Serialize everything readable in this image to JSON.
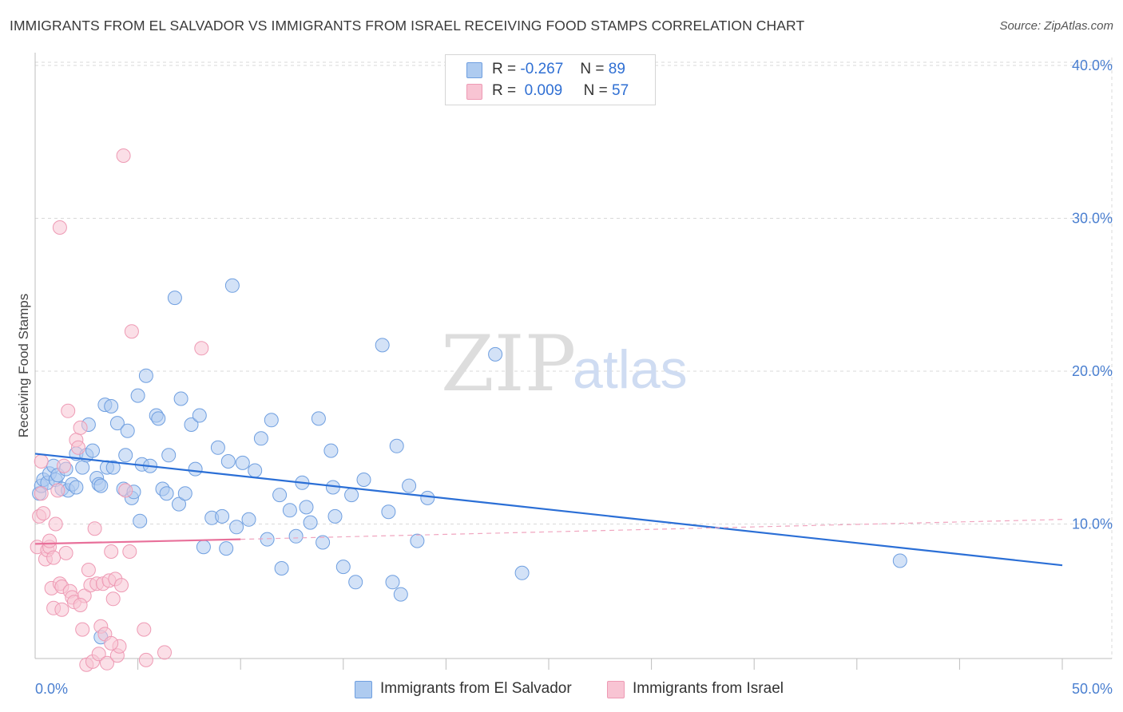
{
  "title": "IMMIGRANTS FROM EL SALVADOR VS IMMIGRANTS FROM ISRAEL RECEIVING FOOD STAMPS CORRELATION CHART",
  "source": "Source: ZipAtlas.com",
  "watermark": {
    "zip": "ZIP",
    "atlas": "atlas"
  },
  "legend": {
    "r_label": "R =",
    "n_label": "N =",
    "entries": [
      {
        "r": "-0.267",
        "n": "89",
        "color": "#aecbf0",
        "border": "#6f9fe0"
      },
      {
        "r": "0.009",
        "n": "57",
        "color": "#f8c4d3",
        "border": "#ee9ab4"
      }
    ]
  },
  "chart_data": {
    "type": "scatter",
    "title": "IMMIGRANTS FROM EL SALVADOR VS IMMIGRANTS FROM ISRAEL RECEIVING FOOD STAMPS CORRELATION CHART",
    "xlabel": "",
    "ylabel": "Receiving Food Stamps",
    "xlim": [
      0,
      50
    ],
    "ylim": [
      0,
      42
    ],
    "x_tick_labels": [
      "0.0%",
      "50.0%"
    ],
    "y_ticks": [
      10,
      20,
      30,
      40
    ],
    "y_tick_labels": [
      "10.0%",
      "20.0%",
      "30.0%",
      "40.0%"
    ],
    "grid": true,
    "legend_position": "top-center",
    "series": [
      {
        "name": "Immigrants from El Salvador",
        "color": "#aecbf0",
        "stroke": "#6f9fe0",
        "trend": {
          "x": [
            0,
            50
          ],
          "y": [
            14.6,
            7.3
          ],
          "color": "#2b6fd6",
          "dashed_extension": false
        },
        "points": [
          [
            0.2,
            12.0
          ],
          [
            0.3,
            12.5
          ],
          [
            0.4,
            12.9
          ],
          [
            0.6,
            12.7
          ],
          [
            0.7,
            13.3
          ],
          [
            0.9,
            13.8
          ],
          [
            1.0,
            12.9
          ],
          [
            1.1,
            13.2
          ],
          [
            1.3,
            12.3
          ],
          [
            1.5,
            13.6
          ],
          [
            1.6,
            12.2
          ],
          [
            1.8,
            12.6
          ],
          [
            2.0,
            12.4
          ],
          [
            2.0,
            14.6
          ],
          [
            2.3,
            13.7
          ],
          [
            2.5,
            14.5
          ],
          [
            2.6,
            16.5
          ],
          [
            2.8,
            14.8
          ],
          [
            3.0,
            13.0
          ],
          [
            3.1,
            12.6
          ],
          [
            3.2,
            12.5
          ],
          [
            3.4,
            17.8
          ],
          [
            3.5,
            13.7
          ],
          [
            3.7,
            17.7
          ],
          [
            3.8,
            13.7
          ],
          [
            4.0,
            16.6
          ],
          [
            4.3,
            12.3
          ],
          [
            4.4,
            14.5
          ],
          [
            4.5,
            16.1
          ],
          [
            4.7,
            11.7
          ],
          [
            4.8,
            12.1
          ],
          [
            5.0,
            18.4
          ],
          [
            5.1,
            10.2
          ],
          [
            5.2,
            13.9
          ],
          [
            5.4,
            19.7
          ],
          [
            5.6,
            13.8
          ],
          [
            5.9,
            17.1
          ],
          [
            6.0,
            16.9
          ],
          [
            6.2,
            12.3
          ],
          [
            6.4,
            12.0
          ],
          [
            6.5,
            14.5
          ],
          [
            6.8,
            24.8
          ],
          [
            7.0,
            11.3
          ],
          [
            7.1,
            18.2
          ],
          [
            7.3,
            12.0
          ],
          [
            7.6,
            16.5
          ],
          [
            7.8,
            13.6
          ],
          [
            8.0,
            17.1
          ],
          [
            8.2,
            8.5
          ],
          [
            8.6,
            10.4
          ],
          [
            8.9,
            15.0
          ],
          [
            9.1,
            10.5
          ],
          [
            9.3,
            8.4
          ],
          [
            9.4,
            14.1
          ],
          [
            9.6,
            25.6
          ],
          [
            9.8,
            9.8
          ],
          [
            10.1,
            14.0
          ],
          [
            10.4,
            10.3
          ],
          [
            10.7,
            13.5
          ],
          [
            11.0,
            15.6
          ],
          [
            11.3,
            9.0
          ],
          [
            11.5,
            16.8
          ],
          [
            11.9,
            11.9
          ],
          [
            12.0,
            7.1
          ],
          [
            12.4,
            10.9
          ],
          [
            12.7,
            9.2
          ],
          [
            13.0,
            12.7
          ],
          [
            13.2,
            11.1
          ],
          [
            13.4,
            10.1
          ],
          [
            13.8,
            16.9
          ],
          [
            14.0,
            8.8
          ],
          [
            14.4,
            14.8
          ],
          [
            14.5,
            12.4
          ],
          [
            14.6,
            10.5
          ],
          [
            15.0,
            7.2
          ],
          [
            15.4,
            11.9
          ],
          [
            15.6,
            6.2
          ],
          [
            16.0,
            12.9
          ],
          [
            16.9,
            21.7
          ],
          [
            17.2,
            10.8
          ],
          [
            17.4,
            6.2
          ],
          [
            17.6,
            15.1
          ],
          [
            17.8,
            5.4
          ],
          [
            18.2,
            12.5
          ],
          [
            18.6,
            8.9
          ],
          [
            19.1,
            11.7
          ],
          [
            22.4,
            21.1
          ],
          [
            23.7,
            6.8
          ],
          [
            42.1,
            7.6
          ],
          [
            3.2,
            2.6
          ]
        ]
      },
      {
        "name": "Immigrants from Israel",
        "color": "#f8c4d3",
        "stroke": "#ee9ab4",
        "trend": {
          "x": [
            0,
            10
          ],
          "y": [
            8.7,
            9.0
          ],
          "color": "#e8709a",
          "dashed_to": [
            50,
            10.3
          ]
        },
        "points": [
          [
            0.1,
            8.5
          ],
          [
            0.2,
            10.5
          ],
          [
            0.3,
            12.0
          ],
          [
            0.3,
            14.1
          ],
          [
            0.4,
            10.7
          ],
          [
            0.5,
            7.7
          ],
          [
            0.6,
            8.3
          ],
          [
            0.7,
            8.5
          ],
          [
            0.7,
            8.9
          ],
          [
            0.8,
            5.8
          ],
          [
            0.9,
            4.5
          ],
          [
            0.9,
            7.8
          ],
          [
            1.0,
            10.0
          ],
          [
            1.1,
            12.2
          ],
          [
            1.2,
            6.1
          ],
          [
            1.3,
            4.4
          ],
          [
            1.3,
            5.9
          ],
          [
            1.4,
            13.8
          ],
          [
            1.5,
            8.1
          ],
          [
            1.6,
            17.4
          ],
          [
            1.7,
            5.6
          ],
          [
            1.8,
            5.2
          ],
          [
            1.9,
            4.9
          ],
          [
            2.0,
            15.5
          ],
          [
            2.1,
            15.0
          ],
          [
            2.2,
            16.3
          ],
          [
            2.3,
            3.1
          ],
          [
            2.4,
            5.3
          ],
          [
            2.5,
            0.8
          ],
          [
            2.6,
            7.0
          ],
          [
            2.7,
            6.0
          ],
          [
            2.8,
            1.0
          ],
          [
            2.9,
            9.7
          ],
          [
            3.0,
            6.1
          ],
          [
            3.1,
            1.5
          ],
          [
            3.2,
            3.3
          ],
          [
            3.3,
            6.1
          ],
          [
            3.4,
            2.8
          ],
          [
            3.5,
            0.9
          ],
          [
            3.6,
            6.3
          ],
          [
            3.7,
            8.2
          ],
          [
            3.8,
            5.1
          ],
          [
            3.9,
            6.4
          ],
          [
            4.0,
            1.4
          ],
          [
            4.1,
            2.0
          ],
          [
            4.2,
            6.0
          ],
          [
            4.3,
            34.1
          ],
          [
            4.4,
            12.2
          ],
          [
            4.6,
            8.2
          ],
          [
            4.7,
            22.6
          ],
          [
            5.3,
            3.1
          ],
          [
            5.4,
            1.1
          ],
          [
            6.3,
            1.6
          ],
          [
            8.1,
            21.5
          ],
          [
            1.2,
            29.4
          ],
          [
            2.2,
            4.7
          ],
          [
            3.7,
            2.2
          ]
        ]
      }
    ]
  },
  "bottom_legend": [
    "Immigrants from El Salvador",
    "Immigrants from Israel"
  ]
}
